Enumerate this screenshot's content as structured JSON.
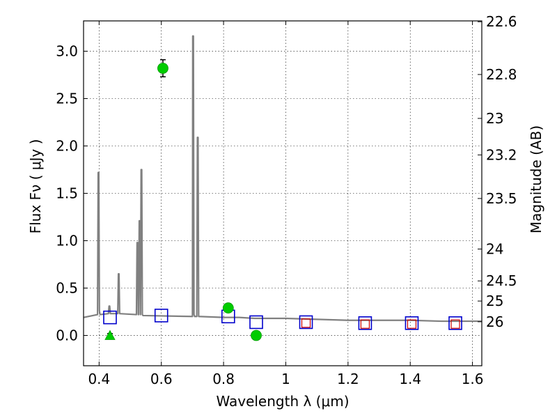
{
  "chart_data": {
    "type": "scatter",
    "xlabel": "Wavelength  λ (μm)",
    "ylabel": "Flux  Fν  ( μJy )",
    "ylabel_right": "Magnitude (AB)",
    "xlim": [
      0.35,
      1.63
    ],
    "ylim": [
      -0.32,
      3.32
    ],
    "grid": true,
    "x_ticks": [
      0.4,
      0.6,
      0.8,
      1.0,
      1.2,
      1.4,
      1.6
    ],
    "x_tick_labels": [
      "0.4",
      "0.6",
      "0.8",
      "1",
      "1.2",
      "1.4",
      "1.6"
    ],
    "y_ticks": [
      0.0,
      0.5,
      1.0,
      1.5,
      2.0,
      2.5,
      3.0
    ],
    "y_tick_labels": [
      "0.0",
      "0.5",
      "1.0",
      "1.5",
      "2.0",
      "2.5",
      "3.0"
    ],
    "mag_ticks": [
      "22.6",
      "22.8",
      "23",
      "23.2",
      "23.5",
      "24",
      "24.5",
      "25",
      "26"
    ],
    "series": [
      {
        "marker": "line",
        "color": "#808080",
        "x": [
          0.35,
          0.395,
          0.397,
          0.399,
          0.401,
          0.403,
          0.43,
          0.432,
          0.434,
          0.436,
          0.46,
          0.462,
          0.464,
          0.466,
          0.52,
          0.522,
          0.524,
          0.526,
          0.527,
          0.529,
          0.531,
          0.533,
          0.535,
          0.537,
          0.539,
          0.541,
          0.7,
          0.701,
          0.703,
          0.705,
          0.707,
          0.714,
          0.716,
          0.718,
          0.72,
          0.8,
          0.85,
          0.9,
          1.0,
          1.1,
          1.2,
          1.3,
          1.4,
          1.5,
          1.63
        ],
        "y": [
          0.19,
          0.22,
          1.72,
          1.72,
          0.26,
          0.22,
          0.23,
          0.31,
          0.31,
          0.23,
          0.23,
          0.65,
          0.65,
          0.23,
          0.22,
          0.98,
          0.98,
          0.22,
          0.22,
          1.21,
          1.21,
          0.22,
          1.75,
          1.75,
          0.22,
          0.21,
          0.2,
          3.16,
          3.16,
          0.22,
          0.2,
          0.2,
          2.09,
          2.09,
          0.2,
          0.19,
          0.19,
          0.18,
          0.18,
          0.17,
          0.16,
          0.16,
          0.16,
          0.15,
          0.15
        ]
      },
      {
        "marker": "open-square",
        "color": "#0000cc",
        "x": [
          0.435,
          0.6,
          0.815,
          0.905,
          1.065,
          1.255,
          1.405,
          1.545
        ],
        "y": [
          0.19,
          0.21,
          0.2,
          0.14,
          0.14,
          0.13,
          0.13,
          0.13
        ]
      },
      {
        "marker": "small-square",
        "color": "#cc0000",
        "x": [
          1.065,
          1.255,
          1.405,
          1.545
        ],
        "y": [
          0.13,
          0.12,
          0.12,
          0.12
        ]
      },
      {
        "marker": "circle",
        "color": "#00cc00",
        "x": [
          0.605,
          0.815,
          0.905
        ],
        "y": [
          2.82,
          0.29,
          0.0
        ],
        "yerr": [
          0.09,
          0.03,
          0.02
        ]
      },
      {
        "marker": "triangle-up",
        "color": "#00cc00",
        "x": [
          0.435
        ],
        "y": [
          0.0
        ],
        "yerr": [
          0.02
        ]
      }
    ]
  }
}
